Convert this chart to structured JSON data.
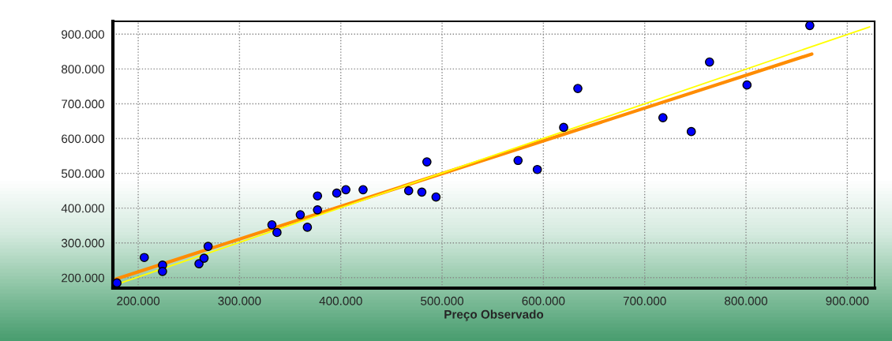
{
  "chart_data": {
    "type": "scatter",
    "xlabel": "Preço Observado",
    "xlim": [
      175000,
      927000
    ],
    "ylim": [
      170000,
      937000
    ],
    "xticks": [
      {
        "value": 200000,
        "label": "200.000"
      },
      {
        "value": 300000,
        "label": "300.000"
      },
      {
        "value": 400000,
        "label": "400.000"
      },
      {
        "value": 500000,
        "label": "500.000"
      },
      {
        "value": 600000,
        "label": "600.000"
      },
      {
        "value": 700000,
        "label": "700.000"
      },
      {
        "value": 800000,
        "label": "800.000"
      },
      {
        "value": 900000,
        "label": "900.000"
      }
    ],
    "yticks": [
      {
        "value": 200000,
        "label": "200.000"
      },
      {
        "value": 300000,
        "label": "300.000"
      },
      {
        "value": 400000,
        "label": "400.000"
      },
      {
        "value": 500000,
        "label": "500.000"
      },
      {
        "value": 600000,
        "label": "600.000"
      },
      {
        "value": 700000,
        "label": "700.000"
      },
      {
        "value": 800000,
        "label": "800.000"
      },
      {
        "value": 900000,
        "label": "900.000"
      }
    ],
    "grid": true,
    "series": [
      {
        "marker": "circle",
        "color": "#0000ff",
        "x": [
          179000,
          206000,
          224000,
          224000,
          260000,
          265000,
          269000,
          332000,
          337000,
          360000,
          367000,
          377000,
          377000,
          396000,
          405000,
          422000,
          467000,
          480000,
          494000,
          485000,
          575000,
          594000,
          620000,
          634000,
          718000,
          746000,
          764000,
          801000,
          863000
        ],
        "values": [
          185000,
          258000,
          236000,
          218000,
          240000,
          256000,
          290000,
          352000,
          330000,
          381000,
          345000,
          395000,
          435000,
          443000,
          453000,
          453000,
          450000,
          446000,
          432000,
          533000,
          537000,
          511000,
          632000,
          744000,
          660000,
          620000,
          820000,
          754000,
          925000
        ]
      },
      {
        "type": "line",
        "color": "#ff8c00",
        "x": [
          178000,
          865000
        ],
        "values": [
          196000,
          843000
        ]
      },
      {
        "type": "line",
        "color": "#ffff00",
        "x": [
          179000,
          922000
        ],
        "values": [
          181000,
          921000
        ]
      }
    ]
  }
}
